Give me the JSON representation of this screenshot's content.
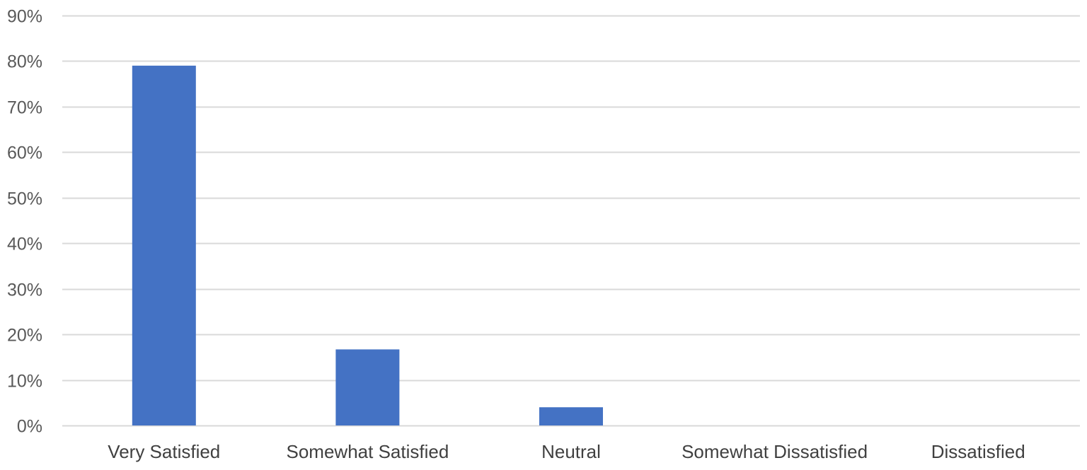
{
  "chart_data": {
    "type": "bar",
    "title": "",
    "xlabel": "",
    "ylabel": "",
    "categories": [
      "Very Satisfied",
      "Somewhat Satisfied",
      "Neutral",
      "Somewhat Dissatisfied",
      "Dissatisfied"
    ],
    "values": [
      79,
      16.7,
      4,
      0,
      0
    ],
    "ylim": [
      0,
      90
    ],
    "yticks": [
      0,
      10,
      20,
      30,
      40,
      50,
      60,
      70,
      80,
      90
    ],
    "ytick_labels": [
      "0%",
      "10%",
      "20%",
      "30%",
      "40%",
      "50%",
      "60%",
      "70%",
      "80%",
      "90%"
    ],
    "grid": true,
    "legend": "none",
    "bar_color": "#4472c4",
    "grid_color": "#d9d9d9",
    "text_color": "#595959"
  }
}
